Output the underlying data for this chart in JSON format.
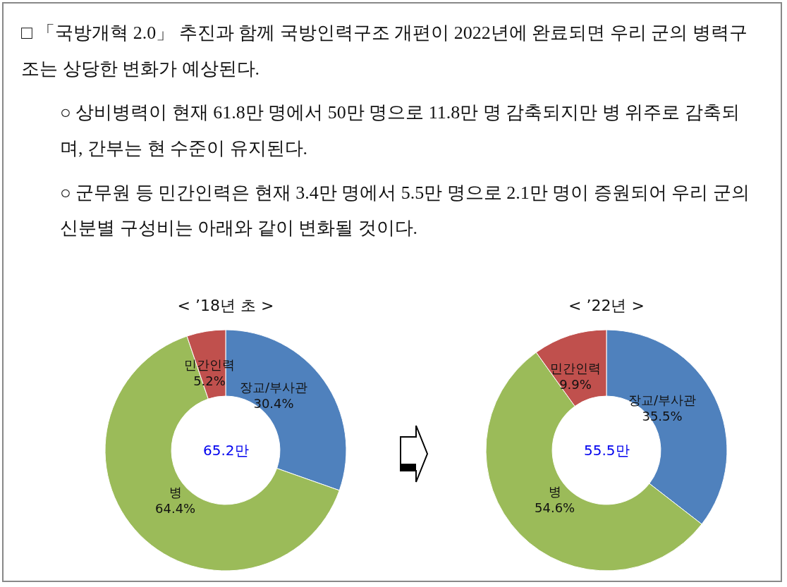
{
  "chart_data": [
    {
      "type": "donut",
      "title": "< ’18년 초 >",
      "categories": [
        "장교/부사관",
        "병",
        "민간인력"
      ],
      "values": [
        30.4,
        64.4,
        5.2
      ],
      "colors": [
        "#4f81bd",
        "#9bbb59",
        "#c0504d"
      ],
      "value_labels": [
        "30.4%",
        "64.4%",
        "5.2%"
      ],
      "annotations": [
        "□ 「국방개혁 2.0」 추진과 함께 국방인력구조 개편이 2022년에 완료되면 우리 군의 병력구조는 상당한 변화가 예상된다.",
        "○ 상비병력이 현재 61.8만 명에서 50만 명으로 11.8만 명 감축되지만 병 위주로 감축되며, 간부는 현 수준이 유지된다.",
        "○ 군무원 등 민간인력은 현재 3.4만 명에서 5.5만 명으로 2.1만 명이 증원되어 우리 군의 신분별 구성비는 아래와 같이 변화될 것이다.",
        "65.2만"
      ]
    },
    {
      "type": "donut",
      "title": "< ’22년 >",
      "categories": [
        "장교/부사관",
        "병",
        "민간인력"
      ],
      "values": [
        35.5,
        54.6,
        9.9
      ],
      "colors": [
        "#4f81bd",
        "#9bbb59",
        "#c0504d"
      ],
      "value_labels": [
        "35.5%",
        "54.6%",
        "9.9%"
      ],
      "annotations": [
        "55.5만"
      ]
    }
  ]
}
